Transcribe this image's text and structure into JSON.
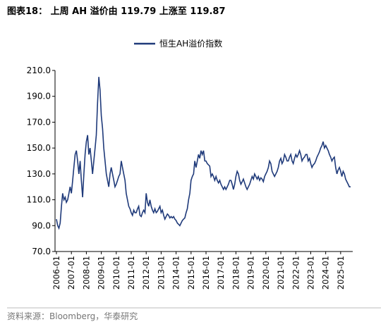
{
  "chart_data": {
    "type": "line",
    "title": "图表18：    上周 AH 溢价由 119.79 上涨至 119.87",
    "source": "资料来源：Bloomberg，华泰研究",
    "x": [
      "2006-01",
      "2006-02",
      "2006-03",
      "2006-04",
      "2006-05",
      "2006-06",
      "2006-07",
      "2006-08",
      "2006-09",
      "2006-10",
      "2006-11",
      "2006-12",
      "2007-01",
      "2007-02",
      "2007-03",
      "2007-04",
      "2007-05",
      "2007-06",
      "2007-07",
      "2007-08",
      "2007-09",
      "2007-10",
      "2007-11",
      "2007-12",
      "2008-01",
      "2008-02",
      "2008-03",
      "2008-04",
      "2008-05",
      "2008-06",
      "2008-07",
      "2008-08",
      "2008-09",
      "2008-10",
      "2008-11",
      "2008-12",
      "2009-01",
      "2009-02",
      "2009-03",
      "2009-04",
      "2009-05",
      "2009-06",
      "2009-07",
      "2009-08",
      "2009-09",
      "2009-10",
      "2009-11",
      "2009-12",
      "2010-01",
      "2010-02",
      "2010-03",
      "2010-04",
      "2010-05",
      "2010-06",
      "2010-07",
      "2010-08",
      "2010-09",
      "2010-10",
      "2010-11",
      "2010-12",
      "2011-01",
      "2011-02",
      "2011-03",
      "2011-04",
      "2011-05",
      "2011-06",
      "2011-07",
      "2011-08",
      "2011-09",
      "2011-10",
      "2011-11",
      "2011-12",
      "2012-01",
      "2012-02",
      "2012-03",
      "2012-04",
      "2012-05",
      "2012-06",
      "2012-07",
      "2012-08",
      "2012-09",
      "2012-10",
      "2012-11",
      "2012-12",
      "2013-01",
      "2013-02",
      "2013-03",
      "2013-04",
      "2013-05",
      "2013-06",
      "2013-07",
      "2013-08",
      "2013-09",
      "2013-10",
      "2013-11",
      "2013-12",
      "2014-01",
      "2014-02",
      "2014-03",
      "2014-04",
      "2014-05",
      "2014-06",
      "2014-07",
      "2014-08",
      "2014-09",
      "2014-10",
      "2014-11",
      "2014-12",
      "2015-01",
      "2015-02",
      "2015-03",
      "2015-04",
      "2015-05",
      "2015-06",
      "2015-07",
      "2015-08",
      "2015-09",
      "2015-10",
      "2015-11",
      "2015-12",
      "2016-01",
      "2016-02",
      "2016-03",
      "2016-04",
      "2016-05",
      "2016-06",
      "2016-07",
      "2016-08",
      "2016-09",
      "2016-10",
      "2016-11",
      "2016-12",
      "2017-01",
      "2017-02",
      "2017-03",
      "2017-04",
      "2017-05",
      "2017-06",
      "2017-07",
      "2017-08",
      "2017-09",
      "2017-10",
      "2017-11",
      "2017-12",
      "2018-01",
      "2018-02",
      "2018-03",
      "2018-04",
      "2018-05",
      "2018-06",
      "2018-07",
      "2018-08",
      "2018-09",
      "2018-10",
      "2018-11",
      "2018-12",
      "2019-01",
      "2019-02",
      "2019-03",
      "2019-04",
      "2019-05",
      "2019-06",
      "2019-07",
      "2019-08",
      "2019-09",
      "2019-10",
      "2019-11",
      "2019-12",
      "2020-01",
      "2020-02",
      "2020-03",
      "2020-04",
      "2020-05",
      "2020-06",
      "2020-07",
      "2020-08",
      "2020-09",
      "2020-10",
      "2020-11",
      "2020-12",
      "2021-01",
      "2021-02",
      "2021-03",
      "2021-04",
      "2021-05",
      "2021-06",
      "2021-07",
      "2021-08",
      "2021-09",
      "2021-10",
      "2021-11",
      "2021-12",
      "2022-01",
      "2022-02",
      "2022-03",
      "2022-04",
      "2022-05",
      "2022-06",
      "2022-07",
      "2022-08",
      "2022-09",
      "2022-10",
      "2022-11",
      "2022-12",
      "2023-01",
      "2023-02",
      "2023-03",
      "2023-04",
      "2023-05",
      "2023-06",
      "2023-07",
      "2023-08",
      "2023-09",
      "2023-10",
      "2023-11",
      "2023-12",
      "2024-01",
      "2024-02",
      "2024-03",
      "2024-04",
      "2024-05",
      "2024-06",
      "2024-07",
      "2024-08",
      "2024-09",
      "2024-10",
      "2024-11",
      "2024-12",
      "2025-01",
      "2025-02",
      "2025-03",
      "2025-04",
      "2025-05",
      "2025-06",
      "2025-07",
      "2025-08",
      "2025-09"
    ],
    "series": [
      {
        "name": "恒生AH溢价指数",
        "color": "#1f3a7a",
        "values": [
          95,
          90,
          88,
          92,
          105,
          115,
          110,
          112,
          108,
          110,
          115,
          120,
          115,
          125,
          135,
          145,
          148,
          140,
          130,
          140,
          125,
          112,
          130,
          145,
          155,
          160,
          145,
          150,
          140,
          130,
          140,
          150,
          160,
          185,
          205,
          195,
          175,
          165,
          150,
          140,
          130,
          125,
          120,
          130,
          135,
          130,
          125,
          120,
          122,
          125,
          128,
          130,
          140,
          135,
          130,
          125,
          115,
          110,
          105,
          103,
          100,
          98,
          102,
          100,
          100,
          103,
          105,
          98,
          97,
          100,
          102,
          100,
          115,
          108,
          105,
          110,
          105,
          102,
          100,
          103,
          100,
          101,
          103,
          105,
          100,
          102,
          98,
          95,
          97,
          99,
          98,
          96,
          97,
          96,
          97,
          95,
          94,
          92,
          91,
          90,
          92,
          94,
          95,
          96,
          100,
          103,
          110,
          115,
          125,
          128,
          130,
          140,
          135,
          140,
          145,
          142,
          148,
          145,
          148,
          140,
          140,
          138,
          137,
          136,
          128,
          130,
          128,
          125,
          128,
          125,
          123,
          125,
          122,
          120,
          118,
          120,
          118,
          120,
          122,
          125,
          125,
          122,
          118,
          122,
          128,
          132,
          130,
          125,
          122,
          124,
          126,
          123,
          120,
          118,
          120,
          122,
          125,
          128,
          126,
          130,
          128,
          126,
          128,
          125,
          127,
          126,
          124,
          128,
          130,
          132,
          135,
          140,
          138,
          132,
          130,
          128,
          130,
          132,
          135,
          140,
          142,
          138,
          140,
          145,
          143,
          140,
          140,
          143,
          145,
          140,
          138,
          142,
          145,
          143,
          145,
          148,
          145,
          140,
          142,
          143,
          145,
          145,
          140,
          142,
          138,
          135,
          137,
          138,
          140,
          143,
          145,
          147,
          150,
          152,
          155,
          150,
          152,
          150,
          148,
          145,
          143,
          140,
          142,
          143,
          135,
          130,
          133,
          135,
          132,
          128,
          132,
          130,
          126,
          124,
          122,
          120,
          120
        ]
      }
    ],
    "ylim": [
      70,
      210
    ],
    "yticks": [
      {
        "value": 70,
        "label": "70.0"
      },
      {
        "value": 90,
        "label": "90.0"
      },
      {
        "value": 110,
        "label": "110.0"
      },
      {
        "value": 130,
        "label": "130.0"
      },
      {
        "value": 150,
        "label": "150.0"
      },
      {
        "value": 170,
        "label": "170.0"
      },
      {
        "value": 190,
        "label": "190.0"
      },
      {
        "value": 210,
        "label": "210.0"
      }
    ],
    "xticks": [
      "2006-01",
      "2007-01",
      "2008-01",
      "2009-01",
      "2010-01",
      "2011-01",
      "2012-01",
      "2013-01",
      "2014-01",
      "2015-01",
      "2016-01",
      "2017-01",
      "2018-01",
      "2019-01",
      "2020-01",
      "2021-01",
      "2022-01",
      "2023-01",
      "2024-01",
      "2025-01"
    ],
    "legend": "top",
    "grid": false
  }
}
